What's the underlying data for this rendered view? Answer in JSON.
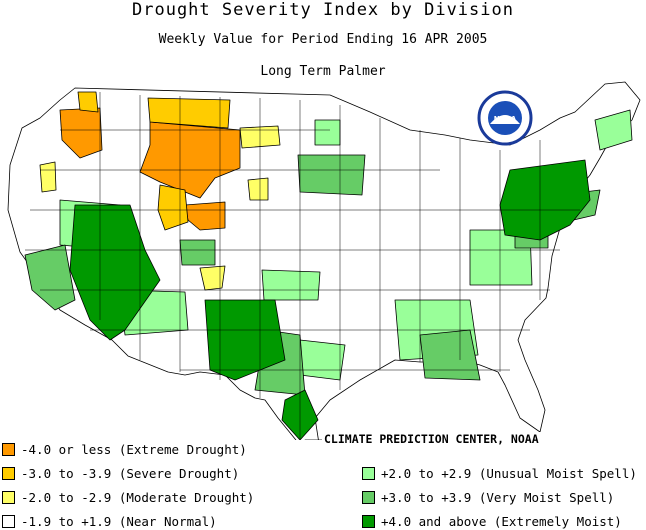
{
  "title": "Drought Severity Index by Division",
  "subtitle": "Weekly Value for Period Ending 16 APR 2005",
  "index_name": "Long Term Palmer",
  "logo_text": "NOAA",
  "credit": "CLIMATE PREDICTION CENTER, NOAA",
  "legend": {
    "left": [
      {
        "label": "-4.0 or less (Extreme Drought)",
        "color": "#ff9900"
      },
      {
        "label": "-3.0 to -3.9 (Severe Drought)",
        "color": "#ffcc00"
      },
      {
        "label": "-2.0 to -2.9 (Moderate Drought)",
        "color": "#ffff66"
      },
      {
        "label": "-1.9 to +1.9 (Near Normal)",
        "color": "#ffffff"
      }
    ],
    "right": [
      {
        "label": "+2.0 to +2.9 (Unusual Moist Spell)",
        "color": "#99ff99"
      },
      {
        "label": "+3.0 to +3.9 (Very Moist Spell)",
        "color": "#66cc66"
      },
      {
        "label": "+4.0 and above (Extremely Moist)",
        "color": "#009900"
      }
    ]
  },
  "colors": {
    "extreme_drought": "#ff9900",
    "severe_drought": "#ffcc00",
    "moderate_drought": "#ffff66",
    "near_normal": "#ffffff",
    "unusual_moist": "#99ff99",
    "very_moist": "#66cc66",
    "extremely_moist": "#009900",
    "water": "#ffffff",
    "borders": "#000000"
  }
}
